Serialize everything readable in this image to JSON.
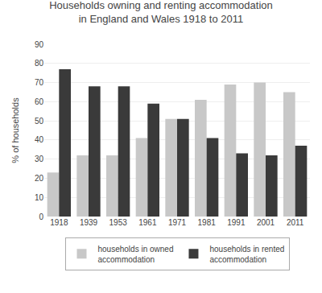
{
  "chart_data": {
    "type": "bar",
    "title": "Households owning and renting accommodation\nin England and Wales 1918 to 2011",
    "categories": [
      "1918",
      "1939",
      "1953",
      "1961",
      "1971",
      "1981",
      "1991",
      "2001",
      "2011"
    ],
    "series": [
      {
        "name": "households in owned\naccommodation",
        "color": "#c8c8c8",
        "values": [
          23,
          32,
          32,
          41,
          51,
          61,
          69,
          70,
          65
        ]
      },
      {
        "name": "households in rented\naccommodation",
        "color": "#3a3a3a",
        "values": [
          77,
          68,
          68,
          59,
          51,
          41,
          33,
          32,
          37
        ]
      }
    ],
    "ylabel": "% of households",
    "ylim": [
      0,
      90
    ],
    "yticks": [
      0,
      10,
      20,
      30,
      40,
      50,
      60,
      70,
      80,
      90
    ],
    "grid": true,
    "legend": "bottom"
  }
}
